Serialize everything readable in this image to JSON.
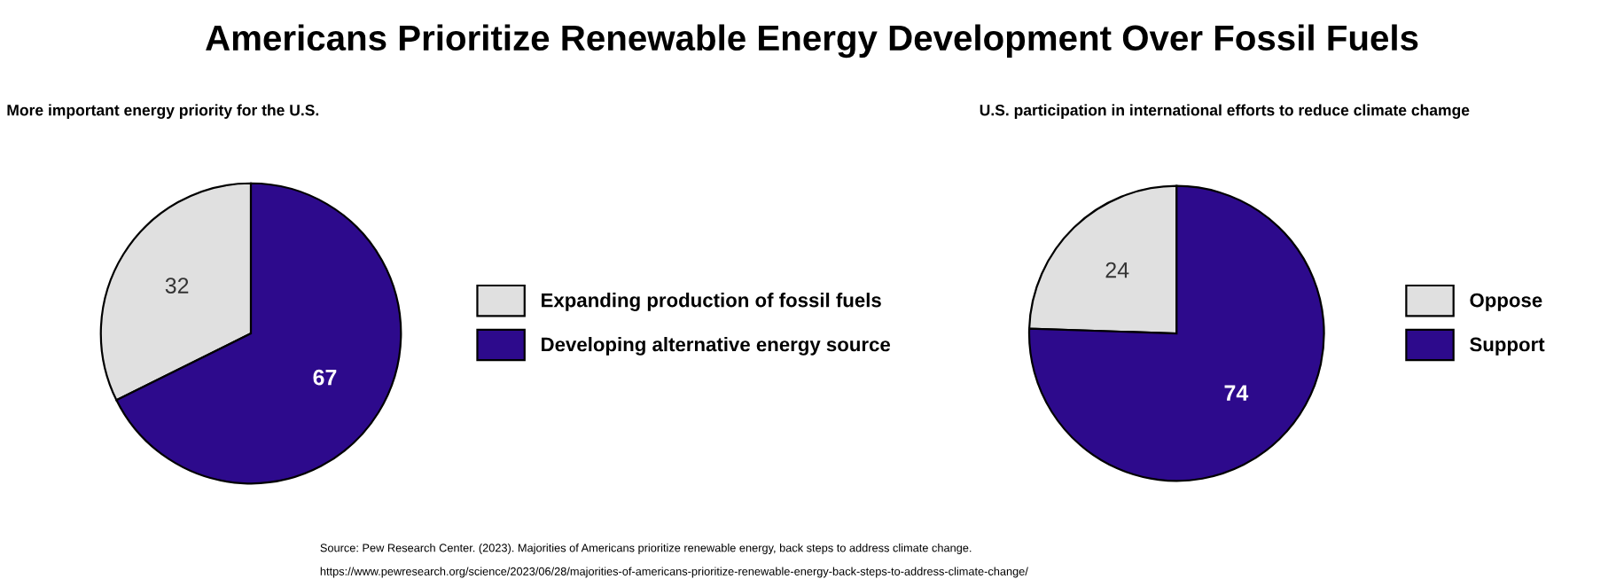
{
  "chart_data": [
    {
      "type": "pie",
      "title": "Americans Prioritize Renewable Energy Development Over Fossil Fuels",
      "subtitle": "More important energy priority for the U.S.",
      "categories": [
        "Expanding production of fossil fuels",
        "Developing alternative energy source"
      ],
      "values": [
        32,
        67
      ],
      "colors": [
        "#e0e0e0",
        "#2d0a8c"
      ],
      "data_labels": true,
      "legend": "right",
      "annotations": [
        "Source: Pew Research Center. (2023). Majorities of Americans prioritize renewable energy, back steps to address climate change.",
        "https://www.pewresearch.org/science/2023/06/28/majorities-of-americans-prioritize-renewable-energy-back-steps-to-address-climate-change/"
      ]
    },
    {
      "type": "pie",
      "subtitle": "U.S. participation in international efforts to reduce climate chamge",
      "categories": [
        "Oppose",
        "Support"
      ],
      "values": [
        24,
        74
      ],
      "colors": [
        "#e0e0e0",
        "#2d0a8c"
      ],
      "data_labels": true,
      "legend": "right"
    }
  ]
}
